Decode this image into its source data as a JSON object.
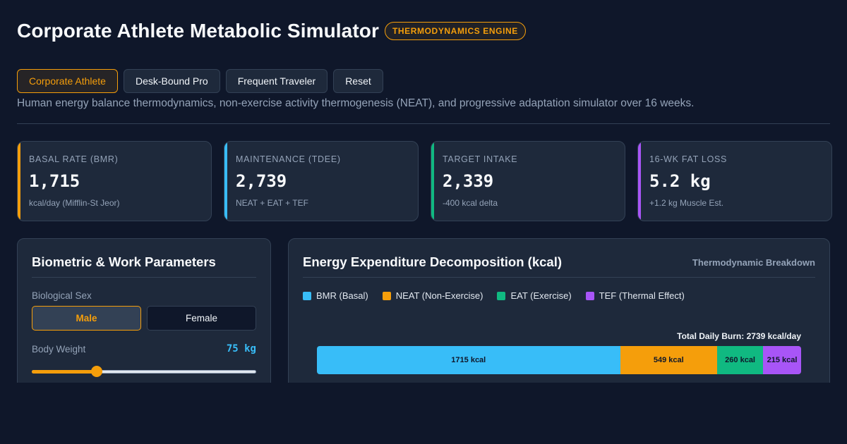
{
  "header": {
    "title": "Corporate Athlete Metabolic Simulator",
    "badge": "THERMODYNAMICS ENGINE"
  },
  "presets": [
    {
      "label": "Corporate Athlete",
      "active": true
    },
    {
      "label": "Desk-Bound Pro",
      "active": false
    },
    {
      "label": "Frequent Traveler",
      "active": false
    },
    {
      "label": "Reset",
      "active": false
    }
  ],
  "subtitle": "Human energy balance thermodynamics, non-exercise activity thermogenesis (NEAT), and progressive adaptation simulator over 16 weeks.",
  "stats": [
    {
      "label": "BASAL RATE (BMR)",
      "value": "1,715",
      "note": "kcal/day (Mifflin-St Jeor)",
      "color": "#f59e0b"
    },
    {
      "label": "MAINTENANCE (TDEE)",
      "value": "2,739",
      "note": "NEAT + EAT + TEF",
      "color": "#38bdf8"
    },
    {
      "label": "TARGET INTAKE",
      "value": "2,339",
      "note": "-400 kcal delta",
      "color": "#10b981"
    },
    {
      "label": "16-WK FAT LOSS",
      "value": "5.2 kg",
      "note": "+1.2 kg Muscle Est.",
      "color": "#a855f7"
    }
  ],
  "params": {
    "title": "Biometric & Work Parameters",
    "sex_label": "Biological Sex",
    "sex_options": [
      "Male",
      "Female"
    ],
    "sex_selected": "Male",
    "weight_label": "Body Weight",
    "weight_value": "75 kg",
    "weight_fraction": 0.29
  },
  "chart": {
    "title": "Energy Expenditure Decomposition (kcal)",
    "tag": "Thermodynamic Breakdown",
    "total_label": "Total Daily Burn: 2739 kcal/day"
  },
  "chart_data": {
    "type": "bar",
    "stacked": true,
    "orientation": "horizontal",
    "total": 2739,
    "series": [
      {
        "name": "BMR (Basal)",
        "value": 1715,
        "label": "1715 kcal",
        "color": "#38bdf8"
      },
      {
        "name": "NEAT (Non-Exercise)",
        "value": 549,
        "label": "549 kcal",
        "color": "#f59e0b"
      },
      {
        "name": "EAT (Exercise)",
        "value": 260,
        "label": "260 kcal",
        "color": "#10b981"
      },
      {
        "name": "TEF (Thermal Effect)",
        "value": 215,
        "label": "215 kcal",
        "color": "#a855f7"
      }
    ]
  }
}
